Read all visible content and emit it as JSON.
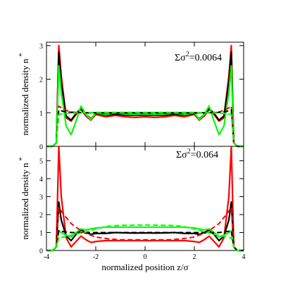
{
  "chart_data": [
    {
      "type": "line",
      "panel": "top",
      "ylabel": "normalized density n",
      "ylabel_sup": "*",
      "annotation": "Σσ²=0.0064",
      "annotation_parts": {
        "pre": "Σσ",
        "sup": "2",
        "post": "=0.0064"
      },
      "xlim": [
        -4,
        4
      ],
      "ylim": [
        0,
        3.1
      ],
      "yticks": [
        0,
        1,
        2,
        3
      ],
      "ytick_labels": [
        "0",
        "1",
        "2",
        "3"
      ],
      "colors": {
        "red": "#ff0000",
        "black": "#000000",
        "green": "#00ff00"
      },
      "series": [
        {
          "color": "red",
          "dash": false,
          "x": [
            -4,
            -3.75,
            -3.6,
            -3.5,
            -3.4,
            -3.2,
            -3.0,
            -2.8,
            -2.6,
            -2.4,
            -2.2,
            -2.0,
            -1.6,
            -1.2,
            -0.8,
            -0.4,
            0,
            0.4,
            0.8,
            1.2,
            1.6,
            2.0,
            2.2,
            2.4,
            2.6,
            2.8,
            3.0,
            3.2,
            3.4,
            3.5,
            3.6,
            3.75,
            4
          ],
          "y": [
            0,
            0,
            0.1,
            3.0,
            2.1,
            0.85,
            0.75,
            0.95,
            1.1,
            0.9,
            0.78,
            0.95,
            0.88,
            0.92,
            0.88,
            0.86,
            0.88,
            0.86,
            0.88,
            0.92,
            0.88,
            0.95,
            0.78,
            0.9,
            1.1,
            0.95,
            0.75,
            0.85,
            2.1,
            3.0,
            0.1,
            0,
            0
          ]
        },
        {
          "color": "black",
          "dash": false,
          "x": [
            -4,
            -3.75,
            -3.6,
            -3.5,
            -3.4,
            -3.2,
            -3.0,
            -2.8,
            -2.6,
            -2.4,
            -2.2,
            -2.0,
            -1.6,
            -1.2,
            -0.8,
            -0.4,
            0,
            0.4,
            0.8,
            1.2,
            1.6,
            2.0,
            2.2,
            2.4,
            2.6,
            2.8,
            3.0,
            3.2,
            3.4,
            3.5,
            3.6,
            3.75,
            4
          ],
          "y": [
            0,
            0,
            0.1,
            2.8,
            1.9,
            0.9,
            0.78,
            0.98,
            1.12,
            0.95,
            0.82,
            0.98,
            0.93,
            0.96,
            0.93,
            0.92,
            0.93,
            0.92,
            0.93,
            0.96,
            0.93,
            0.98,
            0.82,
            0.95,
            1.12,
            0.98,
            0.78,
            0.9,
            1.9,
            2.8,
            0.1,
            0,
            0
          ]
        },
        {
          "color": "green",
          "dash": false,
          "x": [
            -4,
            -3.75,
            -3.6,
            -3.5,
            -3.4,
            -3.2,
            -3.0,
            -2.8,
            -2.6,
            -2.4,
            -2.2,
            -2.0,
            -1.6,
            -1.2,
            -0.8,
            -0.4,
            0,
            0.4,
            0.8,
            1.2,
            1.6,
            2.0,
            2.2,
            2.4,
            2.6,
            2.8,
            3.0,
            3.2,
            3.4,
            3.5,
            3.6,
            3.75,
            4
          ],
          "y": [
            0,
            0,
            0.1,
            2.4,
            1.6,
            0.6,
            0.35,
            0.75,
            1.2,
            0.95,
            0.8,
            1.0,
            0.95,
            1.0,
            0.96,
            0.95,
            0.96,
            0.95,
            0.96,
            1.0,
            0.95,
            1.0,
            0.8,
            0.95,
            1.2,
            0.75,
            0.35,
            0.6,
            1.6,
            2.4,
            0.1,
            0,
            0
          ]
        },
        {
          "color": "red",
          "dash": true,
          "x": [
            -4,
            -3.75,
            -3.6,
            -3.5,
            -3.3,
            -3.0,
            -2.5,
            -2.0,
            -1.0,
            0,
            1.0,
            2.0,
            2.5,
            3.0,
            3.3,
            3.5,
            3.6,
            3.75,
            4
          ],
          "y": [
            0,
            0,
            0.1,
            1.2,
            1.1,
            1.02,
            1.0,
            0.99,
            0.99,
            0.99,
            0.99,
            0.99,
            1.0,
            1.02,
            1.1,
            1.2,
            0.1,
            0,
            0
          ]
        },
        {
          "color": "black",
          "dash": true,
          "x": [
            -4,
            -3.75,
            -3.6,
            -3.5,
            -3.3,
            -3.0,
            -2.5,
            -2.0,
            -1.0,
            0,
            1.0,
            2.0,
            2.5,
            3.0,
            3.3,
            3.5,
            3.6,
            3.75,
            4
          ],
          "y": [
            0,
            0,
            0.1,
            1.08,
            1.04,
            1.01,
            1.0,
            1.0,
            1.0,
            1.0,
            1.0,
            1.0,
            1.0,
            1.01,
            1.04,
            1.08,
            0.1,
            0,
            0
          ]
        },
        {
          "color": "green",
          "dash": true,
          "x": [
            -4,
            -3.75,
            -3.6,
            -3.5,
            -3.3,
            -3.0,
            -2.5,
            -2.0,
            -1.0,
            0,
            1.0,
            2.0,
            2.5,
            3.0,
            3.3,
            3.5,
            3.6,
            3.75,
            4
          ],
          "y": [
            0,
            0,
            0.1,
            0.95,
            0.97,
            0.99,
            1.0,
            1.01,
            1.01,
            1.01,
            1.01,
            1.01,
            1.0,
            0.99,
            0.97,
            0.95,
            0.1,
            0,
            0
          ]
        }
      ]
    },
    {
      "type": "line",
      "panel": "bottom",
      "ylabel": "normalized density n",
      "ylabel_sup": "*",
      "annotation": "Σσ²=0.064",
      "annotation_parts": {
        "pre": "Σσ",
        "sup": "2",
        "post": "=0.064"
      },
      "xlabel": "normalized position z/σ",
      "xlim": [
        -4,
        4
      ],
      "ylim": [
        0,
        5.8
      ],
      "xticks": [
        -4,
        -2,
        0,
        2,
        4
      ],
      "xtick_labels": [
        "-4",
        "-2",
        "0",
        "2",
        "4"
      ],
      "yticks": [
        0,
        1,
        2,
        3,
        4,
        5
      ],
      "ytick_labels": [
        "0",
        "1",
        "2",
        "3",
        "4",
        "5"
      ],
      "colors": {
        "red": "#ff0000",
        "black": "#000000",
        "green": "#00ff00"
      },
      "series": [
        {
          "color": "red",
          "dash": false,
          "x": [
            -4,
            -3.75,
            -3.6,
            -3.5,
            -3.4,
            -3.2,
            -3.0,
            -2.8,
            -2.6,
            -2.4,
            -2.2,
            -2.0,
            -1.6,
            -1.2,
            -0.8,
            -0.4,
            0,
            0.4,
            0.8,
            1.2,
            1.6,
            2.0,
            2.2,
            2.4,
            2.6,
            2.8,
            3.0,
            3.2,
            3.4,
            3.5,
            3.6,
            3.75,
            4
          ],
          "y": [
            0,
            0,
            0.2,
            5.8,
            3.0,
            0.7,
            0.2,
            0.5,
            0.8,
            0.6,
            0.45,
            0.5,
            0.55,
            0.55,
            0.55,
            0.55,
            0.55,
            0.55,
            0.55,
            0.55,
            0.55,
            0.5,
            0.45,
            0.6,
            0.8,
            0.5,
            0.2,
            0.7,
            3.0,
            5.8,
            0.2,
            0,
            0
          ]
        },
        {
          "color": "black",
          "dash": false,
          "x": [
            -4,
            -3.75,
            -3.6,
            -3.5,
            -3.4,
            -3.2,
            -3.0,
            -2.8,
            -2.6,
            -2.4,
            -2.2,
            -2.0,
            -1.6,
            -1.2,
            -0.8,
            -0.4,
            0,
            0.4,
            0.8,
            1.2,
            1.6,
            2.0,
            2.2,
            2.4,
            2.6,
            2.8,
            3.0,
            3.2,
            3.4,
            3.5,
            3.6,
            3.75,
            4
          ],
          "y": [
            0,
            0,
            0.2,
            2.7,
            1.7,
            0.8,
            0.55,
            0.9,
            1.15,
            1.0,
            0.9,
            0.95,
            0.95,
            1.0,
            0.98,
            0.97,
            0.98,
            0.97,
            0.98,
            1.0,
            0.95,
            0.95,
            0.9,
            1.0,
            1.15,
            0.9,
            0.55,
            0.8,
            1.7,
            2.7,
            0.2,
            0,
            0
          ]
        },
        {
          "color": "green",
          "dash": false,
          "x": [
            -4,
            -3.75,
            -3.6,
            -3.5,
            -3.4,
            -3.2,
            -3.0,
            -2.8,
            -2.6,
            -2.4,
            -2.2,
            -2.0,
            -1.6,
            -1.2,
            -0.8,
            -0.4,
            0,
            0.4,
            0.8,
            1.2,
            1.6,
            2.0,
            2.2,
            2.4,
            2.6,
            2.8,
            3.0,
            3.2,
            3.4,
            3.5,
            3.6,
            3.75,
            4
          ],
          "y": [
            0,
            0,
            0.2,
            1.1,
            1.0,
            0.85,
            0.75,
            1.0,
            1.2,
            1.15,
            1.2,
            1.25,
            1.3,
            1.3,
            1.3,
            1.3,
            1.3,
            1.3,
            1.3,
            1.3,
            1.3,
            1.25,
            1.2,
            1.15,
            1.2,
            1.0,
            0.75,
            0.85,
            1.0,
            1.1,
            0.2,
            0,
            0
          ]
        },
        {
          "color": "red",
          "dash": true,
          "x": [
            -4,
            -3.75,
            -3.6,
            -3.5,
            -3.3,
            -3.0,
            -2.5,
            -2.0,
            -1.5,
            -1.0,
            0,
            1.0,
            1.5,
            2.0,
            2.5,
            3.0,
            3.3,
            3.5,
            3.6,
            3.75,
            4
          ],
          "y": [
            0,
            0,
            0.2,
            2.4,
            2.0,
            1.5,
            1.0,
            0.75,
            0.65,
            0.6,
            0.6,
            0.6,
            0.65,
            0.75,
            1.0,
            1.5,
            2.0,
            2.4,
            0.2,
            0,
            0
          ]
        },
        {
          "color": "black",
          "dash": true,
          "x": [
            -4,
            -3.75,
            -3.6,
            -3.5,
            -3.3,
            -3.0,
            -2.5,
            -2.0,
            -1.0,
            0,
            1.0,
            2.0,
            2.5,
            3.0,
            3.3,
            3.5,
            3.6,
            3.75,
            4
          ],
          "y": [
            0,
            0,
            0.2,
            1.1,
            1.05,
            1.0,
            1.0,
            1.0,
            1.0,
            1.0,
            1.0,
            1.0,
            1.0,
            1.0,
            1.05,
            1.1,
            0.2,
            0,
            0
          ]
        },
        {
          "color": "green",
          "dash": true,
          "x": [
            -4,
            -3.75,
            -3.6,
            -3.5,
            -3.3,
            -3.0,
            -2.5,
            -2.0,
            -1.5,
            -1.0,
            0,
            1.0,
            1.5,
            2.0,
            2.5,
            3.0,
            3.3,
            3.5,
            3.6,
            3.75,
            4
          ],
          "y": [
            0,
            0,
            0.2,
            0.7,
            0.75,
            0.85,
            1.0,
            1.2,
            1.35,
            1.4,
            1.42,
            1.4,
            1.35,
            1.2,
            1.0,
            0.85,
            0.75,
            0.7,
            0.2,
            0,
            0
          ]
        }
      ]
    }
  ]
}
